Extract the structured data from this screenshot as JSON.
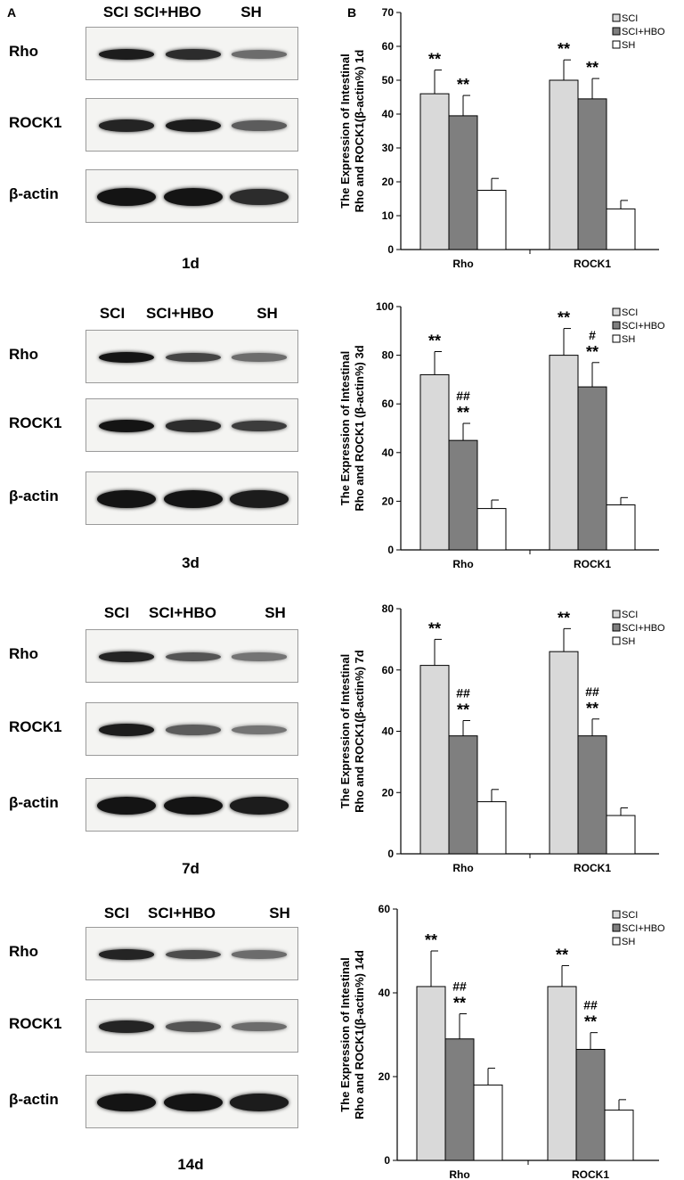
{
  "panel_letters": {
    "a": "A",
    "b": "B"
  },
  "blot_rows": {
    "rho": "Rho",
    "rock1": "ROCK1",
    "actin": "β-actin"
  },
  "blots": [
    {
      "day": "1d",
      "lanes": [
        "SCI",
        "SCI+HBO",
        "SH"
      ]
    },
    {
      "day": "3d",
      "lanes": [
        "SCI",
        "SCI+HBO",
        "SH"
      ]
    },
    {
      "day": "7d",
      "lanes": [
        "SCI",
        "SCI+HBO",
        "SH"
      ]
    },
    {
      "day": "14d",
      "lanes": [
        "SCI",
        "SCI+HBO",
        "SH"
      ]
    }
  ],
  "colors": {
    "SCI": "#d9d9d9",
    "SCI+HBO": "#7f7f7f",
    "SH": "#ffffff"
  },
  "chart_data": [
    {
      "type": "bar",
      "ylabel": "The Expression of Intestinal Rho and ROCK1(β-actin%) 1d",
      "ylim": [
        0,
        70
      ],
      "yticks": [
        0,
        10,
        20,
        30,
        40,
        50,
        60,
        70
      ],
      "categories": [
        "Rho",
        "ROCK1"
      ],
      "legend": "top-right",
      "series": [
        {
          "name": "SCI",
          "values": [
            46,
            50
          ],
          "errors": [
            7,
            6
          ],
          "marks": [
            "**",
            "**"
          ]
        },
        {
          "name": "SCI+HBO",
          "values": [
            39.5,
            44.5
          ],
          "errors": [
            6,
            6
          ],
          "marks": [
            "**",
            "**"
          ]
        },
        {
          "name": "SH",
          "values": [
            17.5,
            12
          ],
          "errors": [
            3.5,
            2.5
          ],
          "marks": [
            "",
            ""
          ]
        }
      ]
    },
    {
      "type": "bar",
      "ylabel": "The Expression of Intestinal Rho and ROCK1 (β-actin%) 3d",
      "ylim": [
        0,
        100
      ],
      "yticks": [
        0,
        20,
        40,
        60,
        80,
        100
      ],
      "categories": [
        "Rho",
        "ROCK1"
      ],
      "legend": "top-right",
      "series": [
        {
          "name": "SCI",
          "values": [
            72,
            80
          ],
          "errors": [
            9.5,
            11
          ],
          "marks": [
            "**",
            "**"
          ]
        },
        {
          "name": "SCI+HBO",
          "values": [
            45,
            67
          ],
          "errors": [
            7,
            10
          ],
          "marks": [
            "**\n##",
            "**\n#"
          ]
        },
        {
          "name": "SH",
          "values": [
            17,
            18.5
          ],
          "errors": [
            3.5,
            3
          ],
          "marks": [
            "",
            ""
          ]
        }
      ]
    },
    {
      "type": "bar",
      "ylabel": "The Expression of Intestinal Rho and ROCK1(β-actin%) 7d",
      "ylim": [
        0,
        80
      ],
      "yticks": [
        0,
        20,
        40,
        60,
        80
      ],
      "categories": [
        "Rho",
        "ROCK1"
      ],
      "legend": "top-right",
      "series": [
        {
          "name": "SCI",
          "values": [
            61.5,
            66
          ],
          "errors": [
            8.5,
            7.5
          ],
          "marks": [
            "**",
            "**"
          ]
        },
        {
          "name": "SCI+HBO",
          "values": [
            38.5,
            38.5
          ],
          "errors": [
            5,
            5.5
          ],
          "marks": [
            "**\n##",
            "**\n##"
          ]
        },
        {
          "name": "SH",
          "values": [
            17,
            12.5
          ],
          "errors": [
            4,
            2.5
          ],
          "marks": [
            "",
            ""
          ]
        }
      ]
    },
    {
      "type": "bar",
      "ylabel": "The Expression of Intestinal Rho and ROCK1(β-actin%) 14d",
      "ylim": [
        0,
        60
      ],
      "yticks": [
        0,
        20,
        40,
        60
      ],
      "categories": [
        "Rho",
        "ROCK1"
      ],
      "legend": "top-right",
      "series": [
        {
          "name": "SCI",
          "values": [
            41.5,
            41.5
          ],
          "errors": [
            8.5,
            5
          ],
          "marks": [
            "**",
            "**"
          ]
        },
        {
          "name": "SCI+HBO",
          "values": [
            29,
            26.5
          ],
          "errors": [
            6,
            4
          ],
          "marks": [
            "**\n##",
            "**\n##"
          ]
        },
        {
          "name": "SH",
          "values": [
            18,
            12
          ],
          "errors": [
            4,
            2.5
          ],
          "marks": [
            "",
            ""
          ]
        }
      ]
    }
  ]
}
